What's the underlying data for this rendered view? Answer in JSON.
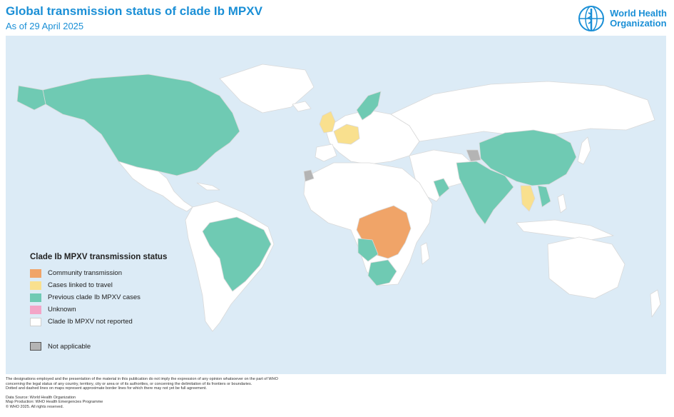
{
  "header": {
    "title": "Global transmission status of clade Ib MPXV",
    "subtitle": "As of 29 April 2025"
  },
  "logo": {
    "line1": "World Health",
    "line2": "Organization",
    "icon": "who-emblem-icon"
  },
  "legend": {
    "title": "Clade Ib MPXV transmission status",
    "items": [
      {
        "label": "Community transmission",
        "color": "#f0a468"
      },
      {
        "label": "Cases linked to travel",
        "color": "#f9e08e"
      },
      {
        "label": "Previous clade Ib MPXV cases",
        "color": "#6fcab3"
      },
      {
        "label": "Unknown",
        "color": "#f3a5c7"
      },
      {
        "label": "Clade Ib MPXV not reported",
        "color": "#ffffff"
      }
    ],
    "not_applicable": {
      "label": "Not applicable",
      "color": "#b4b4b4"
    }
  },
  "colors": {
    "ocean": "#dcebf6",
    "land": "#ffffff",
    "border": "#d9d9d9",
    "accent": "#1a8fd6"
  },
  "footer": {
    "disclaimer1": "The designations employed and the presentation of the material in this publication do not imply the expression of any opinion whatsoever on the part of WHO",
    "disclaimer2": "concerning the legal status of any country, territory, city or area or of its authorities, or concerning the delimitation of its frontiers or boundaries.",
    "disclaimer3": "Dotted and dashed lines on maps represent approximate border lines for which there may not yet be full agreement.",
    "source": "Data Source: World Health Organization",
    "production": "Map Production: WHO Health Emergencies Programme",
    "copyright": "© WHO 2025. All rights reserved."
  }
}
